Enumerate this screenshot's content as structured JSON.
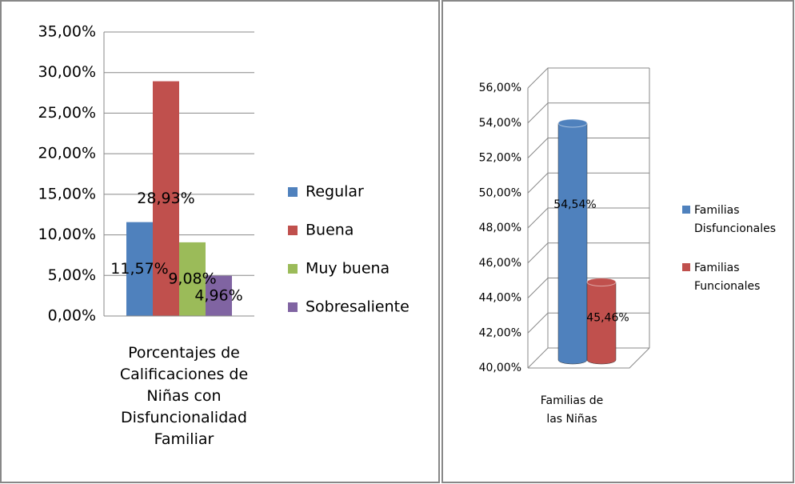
{
  "chart_data": [
    {
      "type": "bar",
      "categories": [
        "Porcentajes de Calificaciones de Niñas con Disfuncionalidad Familiar"
      ],
      "series": [
        {
          "name": "Regular",
          "color": "#4f81bd",
          "values": [
            11.57
          ],
          "value_labels": [
            "11,57%"
          ]
        },
        {
          "name": "Buena",
          "color": "#c0504d",
          "values": [
            28.93
          ],
          "value_labels": [
            "28,93%"
          ]
        },
        {
          "name": "Muy buena",
          "color": "#9bbb59",
          "values": [
            9.08
          ],
          "value_labels": [
            "9,08%"
          ]
        },
        {
          "name": "Sobresaliente",
          "color": "#8064a2",
          "values": [
            4.96
          ],
          "value_labels": [
            "4,96%"
          ]
        }
      ],
      "ylim": [
        0,
        35
      ],
      "yticks": [
        {
          "value": 0,
          "label": "0,00%"
        },
        {
          "value": 5,
          "label": "5,00%"
        },
        {
          "value": 10,
          "label": "10,00%"
        },
        {
          "value": 15,
          "label": "15,00%"
        },
        {
          "value": 20,
          "label": "20,00%"
        },
        {
          "value": 25,
          "label": "25,00%"
        },
        {
          "value": 30,
          "label": "30,00%"
        },
        {
          "value": 35,
          "label": "35,00%"
        }
      ],
      "grid": true,
      "legend": "right"
    },
    {
      "type": "cylinder",
      "categories": [
        "Familias de las Niñas"
      ],
      "series": [
        {
          "name": "Familias Disfuncionales",
          "color": "#4f81bd",
          "values": [
            54.54
          ],
          "value_labels": [
            "54,54%"
          ]
        },
        {
          "name": "Familias Funcionales",
          "color": "#c0504d",
          "values": [
            45.46
          ],
          "value_labels": [
            "45,46%"
          ]
        }
      ],
      "ylim": [
        40,
        56
      ],
      "yticks": [
        {
          "value": 40,
          "label": "40,00%"
        },
        {
          "value": 42,
          "label": "42,00%"
        },
        {
          "value": 44,
          "label": "44,00%"
        },
        {
          "value": 46,
          "label": "46,00%"
        },
        {
          "value": 48,
          "label": "48,00%"
        },
        {
          "value": 50,
          "label": "50,00%"
        },
        {
          "value": 52,
          "label": "52,00%"
        },
        {
          "value": 54,
          "label": "54,00%"
        },
        {
          "value": 56,
          "label": "56,00%"
        }
      ],
      "grid": true,
      "legend": "right"
    }
  ]
}
